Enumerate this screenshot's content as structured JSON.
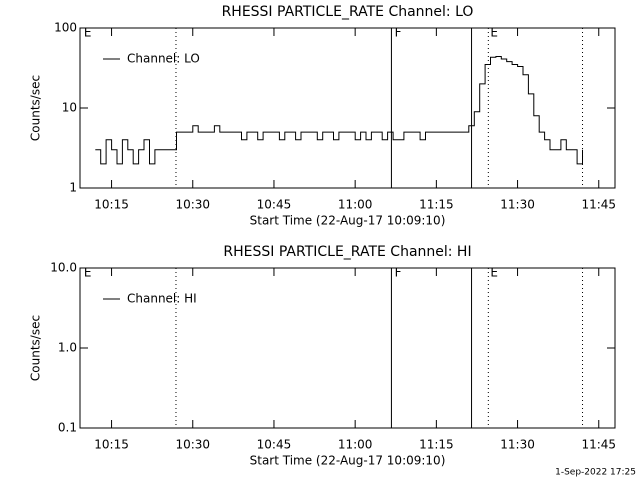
{
  "chart_data": [
    {
      "type": "line",
      "title": "RHESSI PARTICLE_RATE Channel: LO",
      "x_label": "Start Time (22-Aug-17 10:09:10)",
      "y_label": "Counts/sec",
      "ylog": true,
      "ylim": [
        1,
        100
      ],
      "yticks": [
        1,
        10,
        100
      ],
      "xlim": [
        609.17,
        708
      ],
      "xticks": [
        {
          "value": 615,
          "label": "10:15"
        },
        {
          "value": 630,
          "label": "10:30"
        },
        {
          "value": 645,
          "label": "10:45"
        },
        {
          "value": 660,
          "label": "11:00"
        },
        {
          "value": 675,
          "label": "11:15"
        },
        {
          "value": 690,
          "label": "11:30"
        },
        {
          "value": 705,
          "label": "11:45"
        }
      ],
      "vlines": [
        {
          "x": 626.9,
          "style": "dotted"
        },
        {
          "x": 666.7,
          "style": "solid"
        },
        {
          "x": 681.5,
          "style": "solid"
        },
        {
          "x": 684.6,
          "style": "dotted"
        },
        {
          "x": 702.0,
          "style": "dotted"
        }
      ],
      "flags": [
        {
          "text": "E",
          "x": 609.7
        },
        {
          "text": "F",
          "x": 667.1
        },
        {
          "text": "E",
          "x": 684.8
        }
      ],
      "x": [
        612,
        613,
        614,
        615,
        616,
        617,
        618,
        619,
        620,
        621,
        622,
        623,
        624,
        625,
        626,
        627,
        628,
        629,
        630,
        631,
        632,
        633,
        634,
        635,
        636,
        637,
        638,
        639,
        640,
        641,
        642,
        643,
        644,
        645,
        646,
        647,
        648,
        649,
        650,
        651,
        652,
        653,
        654,
        655,
        656,
        657,
        658,
        659,
        660,
        661,
        662,
        663,
        664,
        665,
        666,
        667,
        668,
        669,
        670,
        671,
        672,
        673,
        674,
        675,
        676,
        677,
        678,
        679,
        680,
        681,
        682,
        683,
        684,
        685,
        686,
        687,
        688,
        689,
        690,
        691,
        692,
        693,
        694,
        695,
        696,
        697,
        698,
        699,
        700,
        701,
        702
      ],
      "series": [
        {
          "name": "Channel: LO",
          "color": "#000000",
          "values": [
            3,
            2,
            4,
            3,
            2,
            4,
            3,
            2,
            3,
            4,
            2,
            3,
            3,
            3,
            3,
            5,
            5,
            5,
            6,
            5,
            5,
            5,
            6,
            5,
            5,
            5,
            5,
            4,
            5,
            5,
            4,
            5,
            5,
            5,
            4,
            5,
            5,
            4,
            5,
            5,
            5,
            4,
            5,
            5,
            4,
            5,
            5,
            5,
            4,
            5,
            4,
            5,
            5,
            4,
            5,
            4,
            4,
            5,
            5,
            5,
            4,
            5,
            5,
            5,
            5,
            5,
            5,
            5,
            5,
            6,
            9,
            20,
            35,
            43,
            44,
            41,
            38,
            35,
            33,
            26,
            15,
            8,
            5,
            4,
            3,
            3,
            4,
            3,
            3,
            2,
            3
          ]
        }
      ]
    },
    {
      "type": "line",
      "title": "RHESSI PARTICLE_RATE Channel: HI",
      "x_label": "Start Time (22-Aug-17 10:09:10)",
      "y_label": "Counts/sec",
      "ylog": true,
      "ylim": [
        0.1,
        10
      ],
      "yticks": [
        0.1,
        {
          "value": 1,
          "label": "1.0"
        },
        {
          "value": 10,
          "label": "10.0"
        }
      ],
      "xlim": [
        609.17,
        708
      ],
      "xticks": [
        {
          "value": 615,
          "label": "10:15"
        },
        {
          "value": 630,
          "label": "10:30"
        },
        {
          "value": 645,
          "label": "10:45"
        },
        {
          "value": 660,
          "label": "11:00"
        },
        {
          "value": 675,
          "label": "11:15"
        },
        {
          "value": 690,
          "label": "11:30"
        },
        {
          "value": 705,
          "label": "11:45"
        }
      ],
      "vlines": [
        {
          "x": 626.9,
          "style": "dotted"
        },
        {
          "x": 666.7,
          "style": "solid"
        },
        {
          "x": 681.5,
          "style": "solid"
        },
        {
          "x": 684.6,
          "style": "dotted"
        },
        {
          "x": 702.0,
          "style": "dotted"
        }
      ],
      "flags": [
        {
          "text": "E",
          "x": 609.7
        },
        {
          "text": "F",
          "x": 667.1
        },
        {
          "text": "E",
          "x": 684.8
        }
      ],
      "x": [],
      "series": [
        {
          "name": "Channel: HI",
          "color": "#000000",
          "values": []
        }
      ]
    }
  ],
  "footer": "1-Sep-2022 17:25"
}
